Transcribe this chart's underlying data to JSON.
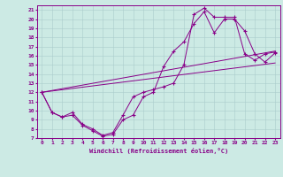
{
  "xlabel": "Windchill (Refroidissement éolien,°C)",
  "bg_color": "#cceae4",
  "line_color": "#880088",
  "grid_color": "#aacccc",
  "series": [
    {
      "x": [
        0,
        1,
        2,
        3,
        4,
        5,
        6,
        7,
        8,
        9,
        10,
        11,
        12,
        13,
        14,
        15,
        16,
        17,
        18,
        19,
        20,
        21,
        22,
        23
      ],
      "y": [
        12,
        9.8,
        9.3,
        9.8,
        8.5,
        8.0,
        7.3,
        7.6,
        9.5,
        11.5,
        12.0,
        12.3,
        12.6,
        13.0,
        15.0,
        20.5,
        21.2,
        20.2,
        20.2,
        20.2,
        16.2,
        15.5,
        16.2,
        16.4
      ],
      "marker": true
    },
    {
      "x": [
        0,
        1,
        2,
        3,
        4,
        5,
        6,
        7,
        8,
        9,
        10,
        11,
        12,
        13,
        14,
        15,
        16,
        17,
        18,
        19,
        20,
        21,
        22,
        23
      ],
      "y": [
        12,
        9.8,
        9.3,
        9.5,
        8.4,
        7.8,
        7.2,
        7.4,
        9.0,
        9.5,
        11.5,
        12.0,
        14.8,
        16.5,
        17.5,
        19.5,
        20.8,
        18.5,
        20.0,
        20.0,
        18.7,
        16.2,
        15.3,
        16.3
      ],
      "marker": true
    },
    {
      "x": [
        0,
        23
      ],
      "y": [
        12,
        16.5
      ],
      "marker": false
    },
    {
      "x": [
        0,
        23
      ],
      "y": [
        12,
        15.2
      ],
      "marker": false
    }
  ],
  "xlim": [
    -0.5,
    23.5
  ],
  "ylim": [
    7,
    21.5
  ],
  "xticks": [
    0,
    1,
    2,
    3,
    4,
    5,
    6,
    7,
    8,
    9,
    10,
    11,
    12,
    13,
    14,
    15,
    16,
    17,
    18,
    19,
    20,
    21,
    22,
    23
  ],
  "yticks": [
    7,
    8,
    9,
    10,
    11,
    12,
    13,
    14,
    15,
    16,
    17,
    18,
    19,
    20,
    21
  ],
  "tick_fontsize": 4.5,
  "xlabel_fontsize": 5.0
}
